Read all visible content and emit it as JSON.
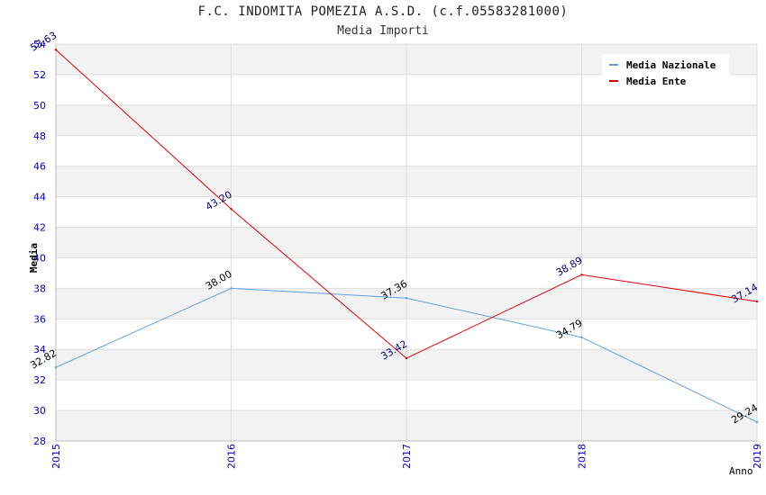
{
  "chart_data": {
    "type": "line",
    "title": "F.C. INDOMITA POMEZIA A.S.D. (c.f.05583281000)",
    "subtitle": "Media Importi",
    "xlabel": "Anno",
    "ylabel": "Media",
    "x": [
      "2015",
      "2016",
      "2017",
      "2018",
      "2019"
    ],
    "ylim": [
      28,
      54
    ],
    "yticks": [
      28,
      30,
      32,
      34,
      36,
      38,
      40,
      42,
      44,
      46,
      48,
      50,
      52,
      54
    ],
    "grid": true,
    "legend_position": "top-right",
    "series": [
      {
        "name": "Media Nazionale",
        "color": "#5fa3e0",
        "label_color": "#000000",
        "values": [
          32.82,
          38.0,
          37.36,
          34.79,
          29.24
        ],
        "labels": [
          "32.82",
          "38.00",
          "37.36",
          "34.79",
          "29.24"
        ]
      },
      {
        "name": "Media Ente",
        "color": "#dd0000",
        "label_color": "#000080",
        "values": [
          53.63,
          43.2,
          33.42,
          38.89,
          37.14
        ],
        "labels": [
          "53.63",
          "43.20",
          "33.42",
          "38.89",
          "37.14"
        ]
      }
    ],
    "colors": {
      "axis_tick_text": "#0000cc",
      "band": "#f2f2f2"
    }
  }
}
